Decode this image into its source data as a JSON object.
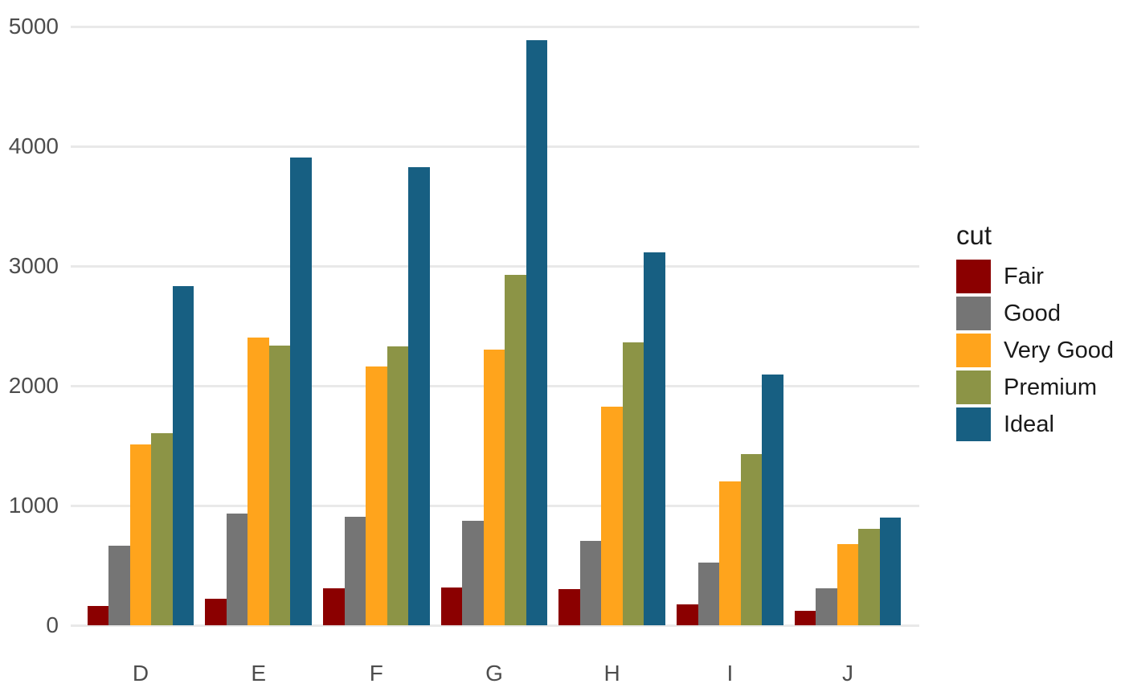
{
  "chart_data": {
    "type": "bar",
    "title": "",
    "xlabel": "",
    "ylabel": "",
    "legend_title": "cut",
    "legend_position": "right",
    "grid": "horizontal-major-only",
    "ylim": [
      0,
      5000
    ],
    "yticks": [
      0,
      1000,
      2000,
      3000,
      4000,
      5000
    ],
    "categories": [
      "D",
      "E",
      "F",
      "G",
      "H",
      "I",
      "J"
    ],
    "series": [
      {
        "name": "Fair",
        "color": "#8B0000",
        "values": [
          163,
          224,
          312,
          314,
          303,
          175,
          119
        ]
      },
      {
        "name": "Good",
        "color": "#757575",
        "values": [
          662,
          933,
          909,
          871,
          702,
          522,
          307
        ]
      },
      {
        "name": "Very Good",
        "color": "#FFA41C",
        "values": [
          1513,
          2400,
          2164,
          2299,
          1824,
          1204,
          678
        ]
      },
      {
        "name": "Premium",
        "color": "#8C9446",
        "values": [
          1603,
          2337,
          2331,
          2924,
          2360,
          1428,
          808
        ]
      },
      {
        "name": "Ideal",
        "color": "#175F82",
        "values": [
          2834,
          3903,
          3826,
          4884,
          3115,
          2093,
          896
        ]
      }
    ],
    "appearance": {
      "background": "#FFFFFF",
      "gridline_color": "#E9E9E9",
      "axis_text_color": "#4D4D4D",
      "legend_text_color": "#1A1A1A"
    }
  }
}
